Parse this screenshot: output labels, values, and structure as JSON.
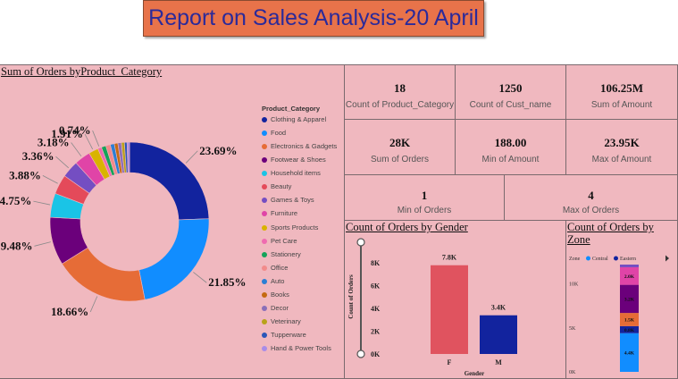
{
  "report_title": "Report on Sales Analysis-20 April",
  "donut": {
    "title": "Sum of Orders byProduct_Category",
    "legend_title": "Product_Category",
    "categories": [
      "Clothing & Apparel",
      "Food",
      "Electronics & Gadgets",
      "Footwear & Shoes",
      "Household items",
      "Beauty",
      "Games & Toys",
      "Furniture",
      "Sports Products",
      "Pet Care",
      "Stationery",
      "Office",
      "Auto",
      "Books",
      "Decor",
      "Veterinary",
      "Tupperware",
      "Hand & Power Tools"
    ],
    "colors": [
      "#12239e",
      "#118dff",
      "#e66c37",
      "#6b007b",
      "#1ac4e6",
      "#e44a5a",
      "#744ec2",
      "#e044a7",
      "#d9b300",
      "#ef6bb0",
      "#15a35a",
      "#f28b8b",
      "#2b7fd4",
      "#c46a12",
      "#8a6fb8",
      "#b8a21a",
      "#2a56b8",
      "#a88ce8"
    ],
    "values": [
      23.69,
      21.85,
      18.66,
      9.48,
      4.75,
      3.88,
      3.36,
      3.18,
      1.91,
      0.74,
      0.9,
      0.9,
      0.8,
      0.7,
      0.7,
      0.6,
      0.5,
      0.49
    ],
    "labels": [
      "23.69%",
      "21.85%",
      "18.66%",
      "9.48%",
      "4.75%",
      "3.88%",
      "3.36%",
      "3.18%",
      "1.91%",
      "0.74%"
    ]
  },
  "cards": [
    {
      "value": "18",
      "label": "Count of Product_Category"
    },
    {
      "value": "1250",
      "label": "Count of Cust_name"
    },
    {
      "value": "106.25M",
      "label": "Sum of Amount"
    },
    {
      "value": "28K",
      "label": "Sum of Orders"
    },
    {
      "value": "188.00",
      "label": "Min of Amount"
    },
    {
      "value": "23.95K",
      "label": "Max of Amount"
    },
    {
      "value": "1",
      "label": "Min of Orders"
    },
    {
      "value": "4",
      "label": "Max of Orders"
    }
  ],
  "gender_chart": {
    "title": "Count of Orders by Gender",
    "ylabel": "Count of Orders",
    "xlabel": "Gender",
    "yticks": [
      "8K",
      "6K",
      "4K",
      "2K",
      "0K"
    ],
    "categories": [
      "F",
      "M"
    ],
    "values": [
      7.8,
      3.4
    ],
    "data_labels": [
      "7.8K",
      "3.4K"
    ],
    "colors": [
      "#e0535f",
      "#12239e"
    ],
    "ylim": [
      0,
      8.8
    ]
  },
  "zone_chart": {
    "title_line1": "Count of Orders by",
    "title_line2": "Zone",
    "legend_title": "Zone",
    "legend": [
      {
        "name": "Central",
        "color": "#118dff"
      },
      {
        "name": "Eastern",
        "color": "#12239e"
      }
    ],
    "yticks": [
      "10K",
      "5K",
      "0K"
    ],
    "segments": [
      {
        "value": 4.4,
        "label": "4.4K",
        "color": "#118dff"
      },
      {
        "value": 0.8,
        "label": "0.8K",
        "color": "#12239e"
      },
      {
        "value": 1.5,
        "label": "1.5K",
        "color": "#e66c37"
      },
      {
        "value": 3.2,
        "label": "3.2K",
        "color": "#6b007b"
      },
      {
        "value": 2.0,
        "label": "2.0K",
        "color": "#e044a7"
      },
      {
        "value": 0.3,
        "label": "",
        "color": "#744ec2"
      }
    ],
    "ylim": [
      0,
      12.2
    ]
  }
}
